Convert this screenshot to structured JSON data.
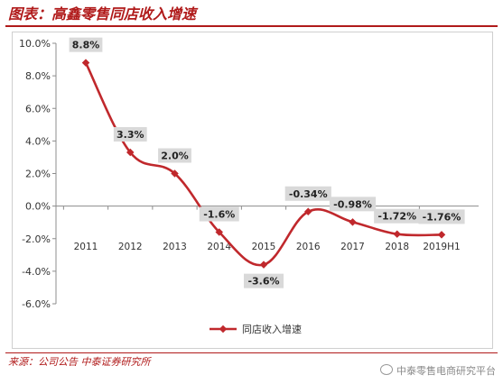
{
  "header": {
    "title": "图表：高鑫零售同店收入增速"
  },
  "footer": {
    "source": "来源：公司公告  中泰证券研究所",
    "watermark": "中泰零售电商研究平台"
  },
  "colors": {
    "accent": "#b01a1a",
    "line": "#c0282c",
    "label_box": "#d9d9d9"
  },
  "chart_data": {
    "type": "line",
    "categories": [
      "2011",
      "2012",
      "2013",
      "2014",
      "2015",
      "2016",
      "2017",
      "2018",
      "2019H1"
    ],
    "series": [
      {
        "name": "同店收入增速",
        "values": [
          8.8,
          3.3,
          2.0,
          -1.6,
          -3.6,
          -0.34,
          -0.98,
          -1.72,
          -1.76
        ]
      }
    ],
    "data_labels": [
      "8.8%",
      "3.3%",
      "2.0%",
      "-1.6%",
      "-3.6%",
      "-0.34%",
      "-0.98%",
      "-1.72%",
      "-1.76%"
    ],
    "y_ticks": [
      10,
      8,
      6,
      4,
      2,
      0,
      -2,
      -4,
      -6
    ],
    "y_tick_labels": [
      "10.0%",
      "8.0%",
      "6.0%",
      "4.0%",
      "2.0%",
      "0.0%",
      "-2.0%",
      "-4.0%",
      "-6.0%"
    ],
    "ylim": [
      -6,
      10
    ],
    "smooth": true,
    "grid": false,
    "legend_position": "bottom-center"
  }
}
